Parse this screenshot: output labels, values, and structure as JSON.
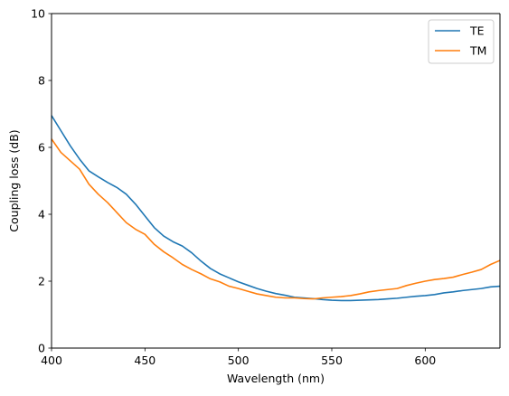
{
  "chart_data": {
    "type": "line",
    "xlabel": "Wavelength (nm)",
    "ylabel": "Coupling loss (dB)",
    "xlim": [
      400,
      640
    ],
    "ylim": [
      0,
      10
    ],
    "xticks": [
      400,
      450,
      500,
      550,
      600
    ],
    "yticks": [
      0,
      2,
      4,
      6,
      8,
      10
    ],
    "grid": false,
    "legend_position": "top-right",
    "series": [
      {
        "name": "TE",
        "color": "#1f77b4",
        "x": [
          400,
          405,
          410,
          415,
          420,
          425,
          430,
          435,
          440,
          445,
          450,
          455,
          460,
          465,
          470,
          475,
          480,
          485,
          490,
          495,
          500,
          505,
          510,
          515,
          520,
          525,
          530,
          535,
          540,
          545,
          550,
          555,
          560,
          565,
          570,
          575,
          580,
          585,
          590,
          595,
          600,
          605,
          610,
          615,
          620,
          625,
          630,
          635,
          640
        ],
        "y": [
          6.95,
          6.5,
          6.05,
          5.65,
          5.3,
          5.12,
          4.95,
          4.8,
          4.6,
          4.3,
          3.95,
          3.6,
          3.35,
          3.18,
          3.05,
          2.85,
          2.6,
          2.38,
          2.22,
          2.1,
          1.98,
          1.88,
          1.78,
          1.7,
          1.63,
          1.58,
          1.52,
          1.5,
          1.48,
          1.45,
          1.43,
          1.42,
          1.42,
          1.43,
          1.44,
          1.45,
          1.47,
          1.49,
          1.52,
          1.55,
          1.57,
          1.6,
          1.65,
          1.68,
          1.72,
          1.75,
          1.78,
          1.83,
          1.85
        ]
      },
      {
        "name": "TM",
        "color": "#ff7f0e",
        "x": [
          400,
          405,
          410,
          415,
          420,
          425,
          430,
          435,
          440,
          445,
          450,
          455,
          460,
          465,
          470,
          475,
          480,
          485,
          490,
          495,
          500,
          505,
          510,
          515,
          520,
          525,
          530,
          535,
          540,
          545,
          550,
          555,
          560,
          565,
          570,
          575,
          580,
          585,
          590,
          595,
          600,
          605,
          610,
          615,
          620,
          625,
          630,
          635,
          640
        ],
        "y": [
          6.25,
          5.85,
          5.6,
          5.35,
          4.9,
          4.6,
          4.35,
          4.05,
          3.75,
          3.55,
          3.4,
          3.1,
          2.88,
          2.7,
          2.5,
          2.35,
          2.22,
          2.07,
          1.98,
          1.85,
          1.78,
          1.7,
          1.62,
          1.57,
          1.52,
          1.5,
          1.5,
          1.48,
          1.47,
          1.5,
          1.52,
          1.54,
          1.57,
          1.62,
          1.68,
          1.72,
          1.75,
          1.78,
          1.87,
          1.94,
          2.0,
          2.05,
          2.08,
          2.12,
          2.2,
          2.27,
          2.35,
          2.5,
          2.62
        ]
      }
    ]
  }
}
